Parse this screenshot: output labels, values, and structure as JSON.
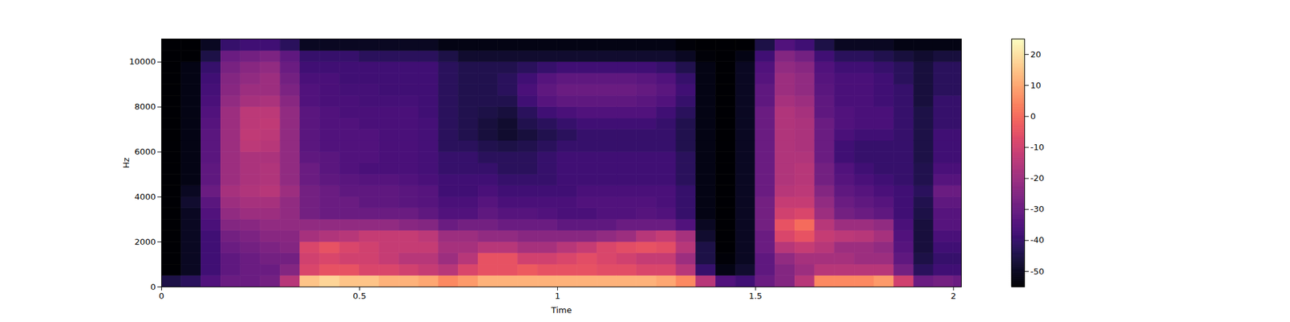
{
  "chart_data": {
    "type": "heatmap",
    "x_label": "Time",
    "y_label": "Hz",
    "xlim": [
      0,
      2.02
    ],
    "ylim": [
      0,
      11025
    ],
    "xticks": [
      0,
      0.5,
      1,
      1.5,
      2
    ],
    "yticks": [
      0,
      2000,
      4000,
      6000,
      8000,
      10000
    ],
    "color": "magma",
    "colorbar": {
      "range": [
        -55,
        25
      ],
      "ticks": [
        -50,
        -40,
        -30,
        -20,
        -10,
        0,
        10,
        20
      ]
    },
    "x": [
      0,
      0.05,
      0.1,
      0.15,
      0.2,
      0.25,
      0.3,
      0.35,
      0.4,
      0.45,
      0.5,
      0.55,
      0.6,
      0.65,
      0.7,
      0.75,
      0.8,
      0.85,
      0.9,
      0.95,
      1,
      1.05,
      1.1,
      1.15,
      1.2,
      1.25,
      1.3,
      1.35,
      1.4,
      1.45,
      1.5,
      1.55,
      1.6,
      1.65,
      1.7,
      1.75,
      1.8,
      1.85,
      1.9,
      1.95,
      2
    ],
    "y": [
      0,
      500,
      1000,
      1500,
      2000,
      2500,
      3000,
      3500,
      4000,
      4500,
      5000,
      5500,
      6000,
      6500,
      7000,
      7500,
      8000,
      8500,
      9000,
      9500,
      10000,
      10500
    ],
    "z": [
      [
        -45,
        -55,
        -55,
        -55,
        -55,
        -55,
        -55,
        -55,
        -55,
        -55,
        -55,
        -55,
        -55,
        -55,
        -55,
        -55,
        -55,
        -55,
        -55,
        -55,
        -55,
        -55
      ],
      [
        -42,
        -50,
        -50,
        -50,
        -50,
        -50,
        -50,
        -48,
        -50,
        -52,
        -52,
        -52,
        -52,
        -52,
        -52,
        -52,
        -52,
        -52,
        -52,
        -52,
        -55,
        -55
      ],
      [
        -35,
        -38,
        -38,
        -38,
        -38,
        -36,
        -35,
        -33,
        -30,
        -32,
        -32,
        -33,
        -33,
        -33,
        -34,
        -35,
        -36,
        -37,
        -38,
        -40,
        -45,
        -50
      ],
      [
        -30,
        -32,
        -32,
        -30,
        -28,
        -25,
        -22,
        -20,
        -18,
        -20,
        -20,
        -20,
        -20,
        -20,
        -20,
        -20,
        -22,
        -24,
        -25,
        -27,
        -30,
        -40
      ],
      [
        -30,
        -30,
        -30,
        -28,
        -26,
        -24,
        -20,
        -18,
        -16,
        -17,
        -17,
        -17,
        -14,
        -13,
        -14,
        -14,
        -18,
        -20,
        -22,
        -24,
        -28,
        -38
      ],
      [
        -28,
        -30,
        -28,
        -26,
        -24,
        -22,
        -20,
        -18,
        -15,
        -16,
        -16,
        -17,
        -15,
        -14,
        -13,
        -14,
        -17,
        -20,
        -20,
        -22,
        -26,
        -38
      ],
      [
        -15,
        -25,
        -28,
        -25,
        -24,
        -22,
        -22,
        -22,
        -20,
        -22,
        -22,
        -22,
        -22,
        -22,
        -22,
        -22,
        -24,
        -26,
        -28,
        -30,
        -32,
        -42
      ],
      [
        15,
        -8,
        -10,
        -8,
        -18,
        -22,
        -28,
        -28,
        -28,
        -30,
        -30,
        -32,
        -33,
        -33,
        -33,
        -33,
        -35,
        -35,
        -36,
        -38,
        -40,
        -50
      ],
      [
        18,
        -5,
        -8,
        -5,
        -16,
        -22,
        -30,
        -30,
        -30,
        -32,
        -33,
        -33,
        -35,
        -35,
        -35,
        -35,
        -36,
        -36,
        -36,
        -38,
        -40,
        -50
      ],
      [
        15,
        -5,
        -10,
        -8,
        -15,
        -22,
        -30,
        -30,
        -32,
        -33,
        -35,
        -35,
        -35,
        -35,
        -35,
        -36,
        -36,
        -37,
        -38,
        -38,
        -40,
        -50
      ],
      [
        15,
        -8,
        -10,
        -10,
        -12,
        -22,
        -30,
        -32,
        -32,
        -34,
        -36,
        -35,
        -35,
        -35,
        -36,
        -36,
        -37,
        -37,
        -38,
        -38,
        -42,
        -50
      ],
      [
        12,
        -8,
        -12,
        -12,
        -12,
        -22,
        -30,
        -32,
        -32,
        -34,
        -36,
        -36,
        -36,
        -36,
        -36,
        -36,
        -37,
        -38,
        -38,
        -38,
        -42,
        -50
      ],
      [
        12,
        -10,
        -15,
        -12,
        -12,
        -24,
        -30,
        -33,
        -33,
        -35,
        -36,
        -36,
        -36,
        -36,
        -36,
        -36,
        -37,
        -38,
        -38,
        -38,
        -42,
        -50
      ],
      [
        10,
        -12,
        -15,
        -12,
        -14,
        -25,
        -32,
        -34,
        -34,
        -36,
        -37,
        -37,
        -37,
        -37,
        -37,
        -38,
        -38,
        -38,
        -38,
        -38,
        -42,
        -50
      ],
      [
        5,
        -15,
        -20,
        -18,
        -20,
        -30,
        -35,
        -36,
        -38,
        -38,
        -40,
        -40,
        -42,
        -42,
        -42,
        -42,
        -42,
        -42,
        -42,
        -42,
        -45,
        -52
      ],
      [
        8,
        -8,
        -15,
        -18,
        -20,
        -28,
        -35,
        -36,
        -38,
        -38,
        -40,
        -40,
        -42,
        -44,
        -44,
        -44,
        -44,
        -44,
        -44,
        -44,
        -48,
        -52
      ],
      [
        12,
        -5,
        -5,
        -15,
        -22,
        -28,
        -32,
        -34,
        -36,
        -38,
        -40,
        -42,
        -44,
        -46,
        -46,
        -45,
        -44,
        -44,
        -44,
        -44,
        -48,
        -52
      ],
      [
        12,
        -5,
        -5,
        -15,
        -22,
        -30,
        -34,
        -36,
        -38,
        -40,
        -42,
        -42,
        -45,
        -48,
        -48,
        -46,
        -44,
        -42,
        -42,
        -44,
        -48,
        -52
      ],
      [
        12,
        -3,
        -10,
        -18,
        -24,
        -30,
        -34,
        -36,
        -38,
        -40,
        -42,
        -42,
        -44,
        -46,
        -44,
        -42,
        -38,
        -36,
        -38,
        -42,
        -48,
        -52
      ],
      [
        12,
        -5,
        -10,
        -18,
        -24,
        -30,
        -35,
        -36,
        -38,
        -40,
        -40,
        -40,
        -42,
        -44,
        -42,
        -38,
        -34,
        -32,
        -34,
        -40,
        -48,
        -52
      ],
      [
        12,
        -5,
        -8,
        -15,
        -24,
        -32,
        -36,
        -36,
        -38,
        -38,
        -38,
        -38,
        -40,
        -42,
        -40,
        -36,
        -32,
        -30,
        -32,
        -38,
        -48,
        -52
      ],
      [
        12,
        -5,
        -6,
        -12,
        -24,
        -32,
        -36,
        -35,
        -36,
        -38,
        -38,
        -38,
        -40,
        -40,
        -38,
        -35,
        -32,
        -30,
        -32,
        -38,
        -48,
        -52
      ],
      [
        12,
        -6,
        -8,
        -8,
        -22,
        -32,
        -35,
        -35,
        -36,
        -38,
        -38,
        -38,
        -40,
        -40,
        -38,
        -35,
        -32,
        -30,
        -32,
        -38,
        -48,
        -52
      ],
      [
        12,
        -6,
        -10,
        -6,
        -20,
        -30,
        -35,
        -35,
        -36,
        -38,
        -38,
        -38,
        -40,
        -40,
        -38,
        -35,
        -32,
        -30,
        -32,
        -38,
        -48,
        -52
      ],
      [
        12,
        -8,
        -12,
        -5,
        -15,
        -30,
        -34,
        -35,
        -36,
        -38,
        -38,
        -38,
        -40,
        -40,
        -38,
        -35,
        -33,
        -31,
        -33,
        -38,
        -48,
        -52
      ],
      [
        10,
        -8,
        -12,
        -6,
        -12,
        -30,
        -35,
        -36,
        -36,
        -38,
        -38,
        -38,
        -40,
        -40,
        -40,
        -38,
        -35,
        -33,
        -35,
        -40,
        -48,
        -52
      ],
      [
        5,
        -15,
        -20,
        -15,
        -18,
        -35,
        -40,
        -40,
        -40,
        -42,
        -42,
        -42,
        -44,
        -44,
        -44,
        -42,
        -40,
        -38,
        -40,
        -44,
        -50,
        -54
      ],
      [
        -15,
        -40,
        -45,
        -45,
        -48,
        -50,
        -52,
        -52,
        -52,
        -52,
        -52,
        -52,
        -52,
        -52,
        -52,
        -52,
        -52,
        -52,
        -52,
        -52,
        -54,
        -55
      ],
      [
        -35,
        -52,
        -54,
        -55,
        -55,
        -55,
        -55,
        -55,
        -55,
        -55,
        -55,
        -55,
        -55,
        -55,
        -55,
        -55,
        -55,
        -55,
        -55,
        -55,
        -55,
        -55
      ],
      [
        -38,
        -48,
        -50,
        -50,
        -50,
        -50,
        -50,
        -50,
        -50,
        -50,
        -50,
        -50,
        -50,
        -50,
        -50,
        -50,
        -50,
        -50,
        -50,
        -50,
        -52,
        -55
      ],
      [
        -30,
        -32,
        -32,
        -30,
        -30,
        -28,
        -28,
        -28,
        -30,
        -30,
        -30,
        -30,
        -30,
        -30,
        -30,
        -30,
        -32,
        -32,
        -34,
        -35,
        -38,
        -45
      ],
      [
        -25,
        -25,
        -22,
        -15,
        -8,
        -5,
        -10,
        -12,
        -15,
        -16,
        -16,
        -16,
        -16,
        -16,
        -16,
        -16,
        -18,
        -20,
        -20,
        -22,
        -25,
        -35
      ],
      [
        -15,
        -20,
        -18,
        -12,
        -5,
        0,
        -8,
        -12,
        -14,
        -15,
        -15,
        -16,
        -17,
        -17,
        -17,
        -18,
        -20,
        -22,
        -22,
        -24,
        -28,
        -38
      ],
      [
        5,
        -15,
        -18,
        -15,
        -12,
        -15,
        -20,
        -22,
        -25,
        -28,
        -28,
        -30,
        -30,
        -30,
        -30,
        -32,
        -32,
        -33,
        -34,
        -35,
        -38,
        -45
      ],
      [
        5,
        -15,
        -18,
        -20,
        -14,
        -20,
        -28,
        -30,
        -32,
        -34,
        -35,
        -38,
        -38,
        -36,
        -35,
        -35,
        -36,
        -36,
        -36,
        -38,
        -42,
        -50
      ],
      [
        5,
        -15,
        -20,
        -20,
        -15,
        -20,
        -30,
        -32,
        -34,
        -36,
        -38,
        -40,
        -40,
        -38,
        -36,
        -36,
        -36,
        -36,
        -36,
        -38,
        -42,
        -50
      ],
      [
        8,
        -15,
        -20,
        -22,
        -18,
        -22,
        -32,
        -34,
        -36,
        -38,
        -40,
        -40,
        -40,
        -38,
        -36,
        -36,
        -38,
        -38,
        -38,
        -40,
        -44,
        -50
      ],
      [
        -10,
        -28,
        -32,
        -34,
        -35,
        -36,
        -38,
        -38,
        -38,
        -40,
        -40,
        -40,
        -40,
        -40,
        -40,
        -40,
        -40,
        -40,
        -42,
        -42,
        -46,
        -52
      ],
      [
        -30,
        -42,
        -45,
        -46,
        -46,
        -46,
        -45,
        -44,
        -42,
        -44,
        -44,
        -45,
        -45,
        -45,
        -45,
        -45,
        -46,
        -46,
        -46,
        -46,
        -48,
        -52
      ],
      [
        -28,
        -38,
        -40,
        -38,
        -36,
        -34,
        -34,
        -32,
        -30,
        -34,
        -36,
        -38,
        -38,
        -38,
        -40,
        -40,
        -40,
        -42,
        -42,
        -42,
        -46,
        -52
      ],
      [
        -30,
        -38,
        -40,
        -38,
        -36,
        -34,
        -34,
        -32,
        -30,
        -34,
        -36,
        -38,
        -38,
        -38,
        -40,
        -40,
        -40,
        -42,
        -42,
        -42,
        -46,
        -52
      ]
    ]
  }
}
